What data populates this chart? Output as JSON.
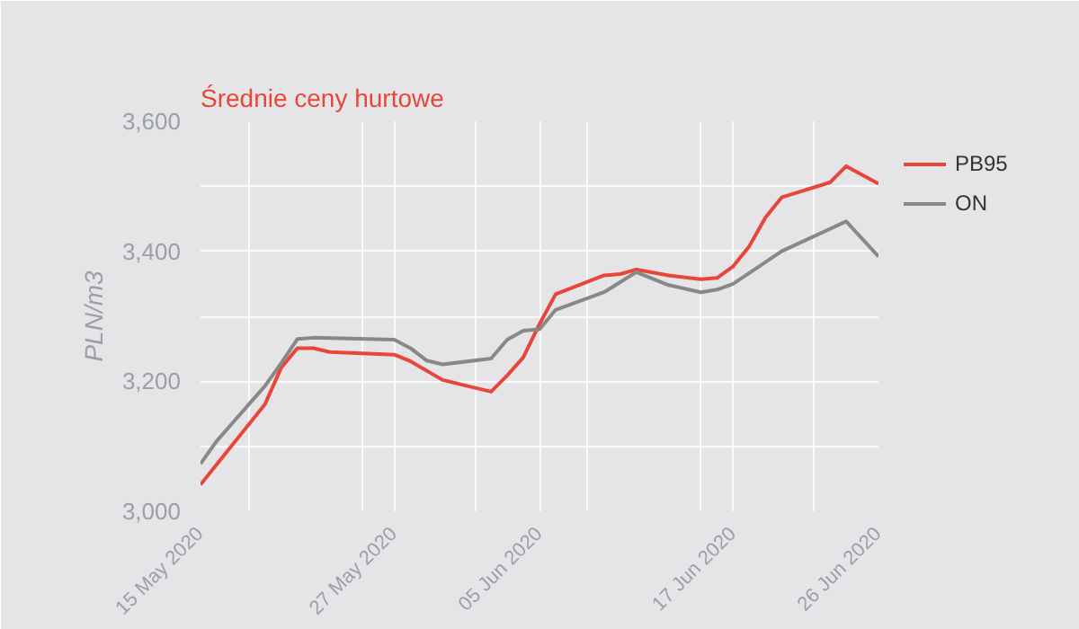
{
  "chart_data": {
    "type": "line",
    "title": "Średnie ceny hurtowe",
    "ylabel": "PLN/m3",
    "xlim": [
      "2020-05-15",
      "2020-06-26"
    ],
    "xticks": [
      {
        "value": "2020-05-15",
        "label": "15 May 2020"
      },
      {
        "value": "2020-05-18",
        "label": null
      },
      {
        "value": "2020-05-25",
        "label": null
      },
      {
        "value": "2020-05-27",
        "label": "27 May 2020"
      },
      {
        "value": "2020-06-01",
        "label": null
      },
      {
        "value": "2020-06-05",
        "label": "05 Jun 2020"
      },
      {
        "value": "2020-06-08",
        "label": null
      },
      {
        "value": "2020-06-15",
        "label": null
      },
      {
        "value": "2020-06-17",
        "label": "17 Jun 2020"
      },
      {
        "value": "2020-06-22",
        "label": null
      },
      {
        "value": "2020-06-26",
        "label": "26 Jun 2020"
      }
    ],
    "ylim": [
      3000,
      3600
    ],
    "yticks": [
      {
        "value": 3000,
        "label": "3,000"
      },
      {
        "value": 3100,
        "label": null
      },
      {
        "value": 3200,
        "label": "3,200"
      },
      {
        "value": 3300,
        "label": null
      },
      {
        "value": 3400,
        "label": "3,400"
      },
      {
        "value": 3500,
        "label": null
      },
      {
        "value": 3600,
        "label": "3,600"
      }
    ],
    "grid": true,
    "legend": "top right",
    "marker": "none",
    "line_style": "solid",
    "series": [
      {
        "name": "PB95",
        "color": "#e8463a",
        "x": [
          "2020-05-15",
          "2020-05-19",
          "2020-05-20",
          "2020-05-21",
          "2020-05-22",
          "2020-05-23",
          "2020-05-27",
          "2020-05-28",
          "2020-05-30",
          "2020-06-02",
          "2020-06-03",
          "2020-06-04",
          "2020-06-05",
          "2020-06-06",
          "2020-06-09",
          "2020-06-10",
          "2020-06-11",
          "2020-06-13",
          "2020-06-15",
          "2020-06-16",
          "2020-06-17",
          "2020-06-18",
          "2020-06-19",
          "2020-06-20",
          "2020-06-23",
          "2020-06-24",
          "2020-06-26"
        ],
        "values": [
          3041,
          3165,
          3221,
          3251,
          3251,
          3245,
          3241,
          3231,
          3202,
          3184,
          3209,
          3237,
          3288,
          3334,
          3363,
          3365,
          3372,
          3363,
          3357,
          3359,
          3377,
          3408,
          3452,
          3483,
          3506,
          3531,
          3504
        ]
      },
      {
        "name": "ON",
        "color": "#888888",
        "x": [
          "2020-05-15",
          "2020-05-16",
          "2020-05-19",
          "2020-05-20",
          "2020-05-21",
          "2020-05-22",
          "2020-05-27",
          "2020-05-28",
          "2020-05-29",
          "2020-05-30",
          "2020-06-02",
          "2020-06-03",
          "2020-06-04",
          "2020-06-05",
          "2020-06-06",
          "2020-06-09",
          "2020-06-11",
          "2020-06-13",
          "2020-06-15",
          "2020-06-16",
          "2020-06-17",
          "2020-06-20",
          "2020-06-24",
          "2020-06-26"
        ],
        "values": [
          3073,
          3108,
          3193,
          3228,
          3265,
          3267,
          3264,
          3251,
          3232,
          3226,
          3235,
          3264,
          3278,
          3280,
          3310,
          3337,
          3368,
          3348,
          3337,
          3341,
          3350,
          3400,
          3446,
          3392
        ]
      }
    ]
  }
}
